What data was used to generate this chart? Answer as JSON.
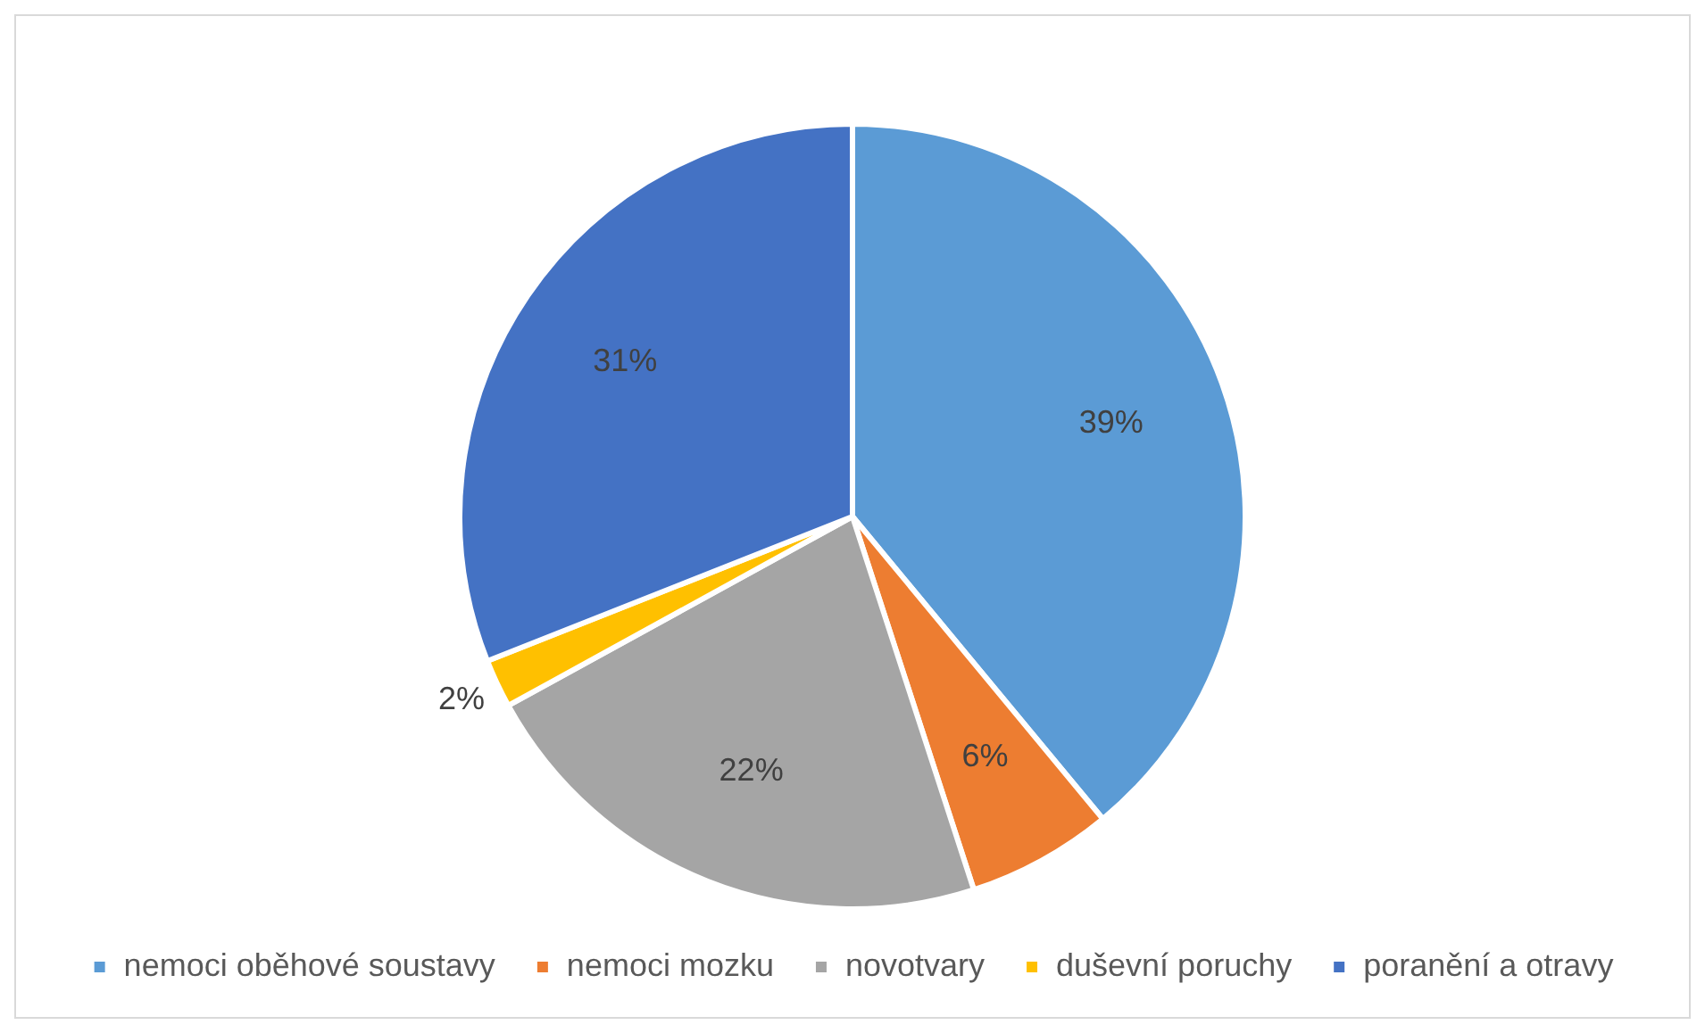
{
  "chart_data": {
    "type": "pie",
    "categories": [
      "nemoci oběhové soustavy",
      "nemoci mozku",
      "novotvary",
      "duševní poruchy",
      "poranění a otravy"
    ],
    "values": [
      39,
      6,
      22,
      2,
      31
    ],
    "colors": [
      "#5b9bd5",
      "#ed7d31",
      "#a5a5a5",
      "#ffc000",
      "#4472c4"
    ],
    "value_labels": [
      "39%",
      "6%",
      "22%",
      "2%",
      "31%"
    ],
    "legend": "bottom"
  }
}
